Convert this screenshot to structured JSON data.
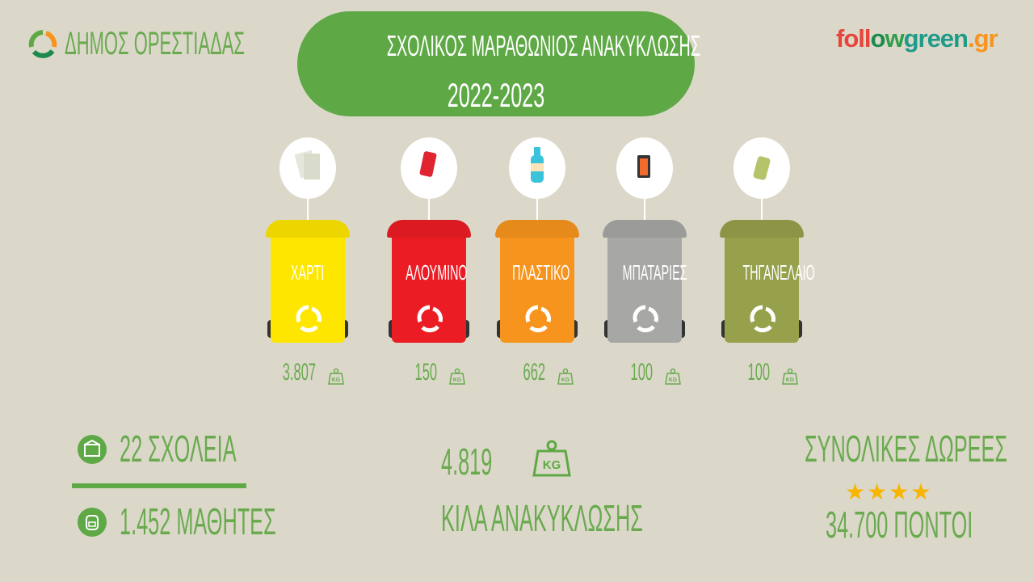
{
  "header": {
    "municipality": "ΔΗΜΟΣ ΟΡΕΣΤΙΑΔΑΣ",
    "title_line1": "ΣΧΟΛΙΚΟΣ ΜΑΡΑΘΩΝΙΟΣ ΑΝΑΚΥΚΛΩΣΗΣ",
    "title_line2": "2022-2023",
    "logo": {
      "part1": "foll",
      "part2": "o",
      "part3": "w",
      "part4": "green",
      ".gr": ".gr",
      "gr": ".gr"
    }
  },
  "colors": {
    "background": "#dbd8ca",
    "accent_green": "#5ea845",
    "text_green": "#6aaa4f"
  },
  "bins": [
    {
      "label": "ΧΑΡΤΙ",
      "amount": "3.807",
      "unit": "KG",
      "color": "#ffe600",
      "icon": "paper-icon"
    },
    {
      "label": "ΑΛΟΥΜΙΝΟ",
      "amount": "150",
      "unit": "KG",
      "color": "#ec1c24",
      "icon": "can-icon"
    },
    {
      "label": "ΠΛΑΣΤΙΚΟ",
      "amount": "662",
      "unit": "KG",
      "color": "#f7941d",
      "icon": "bottle-icon"
    },
    {
      "label": "ΜΠΑΤΑΡΙΕΣ",
      "amount": "100",
      "unit": "KG",
      "color": "#a7a7a5",
      "icon": "battery-icon"
    },
    {
      "label": "ΤΗΓΑΝΕΛΑΙΟ",
      "amount": "100",
      "unit": "KG",
      "color": "#97a04b",
      "icon": "oil-bottle-icon"
    }
  ],
  "stats": {
    "schools": "22 ΣΧΟΛΕΙΑ",
    "students": "1.452 ΜΑΘΗΤΕΣ",
    "total_kg": "4.819",
    "total_unit": "KG",
    "total_label": "ΚΙΛΑ ΑΝΑΚΥΚΛΩΣΗΣ",
    "donations_title": "ΣΥΝΟΛΙΚΕΣ ΔΩΡΕΕΣ",
    "stars": 4,
    "points": "34.700 ΠΟΝΤΟΙ"
  }
}
